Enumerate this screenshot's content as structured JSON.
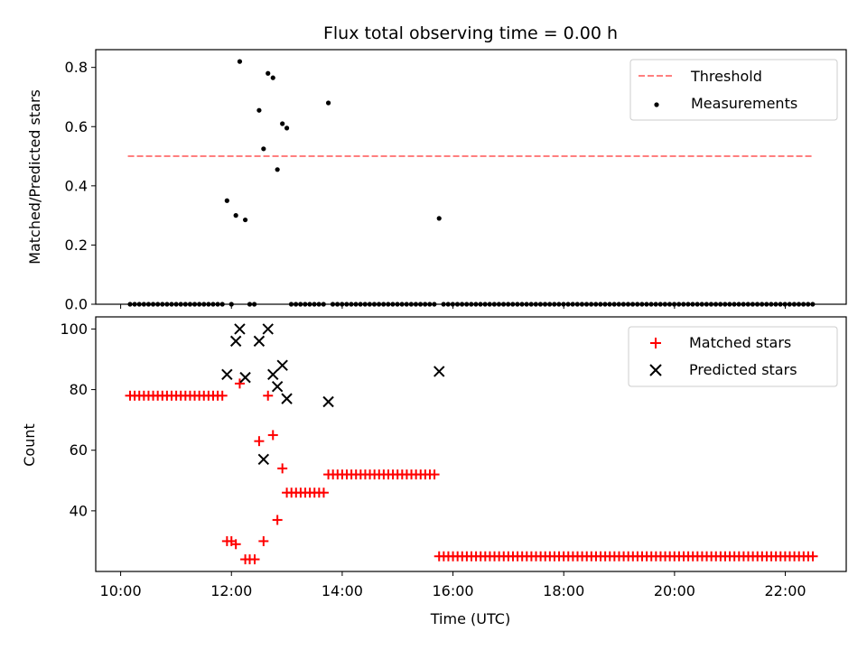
{
  "title": "Flux total observing time = 0.00 h",
  "x_tick_labels": [
    "10:00",
    "12:00",
    "14:00",
    "16:00",
    "18:00",
    "20:00",
    "22:00"
  ],
  "xlabel": "Time (UTC)",
  "colors": {
    "threshold": "#ff7f7f",
    "measurements": "#000000",
    "matched": "#ff0000",
    "predicted": "#000000"
  },
  "chart_data": [
    {
      "type": "scatter",
      "ylabel": "Matched/Predicted stars",
      "xlim_hours": [
        9.55,
        23.1
      ],
      "ylim": [
        0,
        0.86
      ],
      "yticks": [
        0.0,
        0.2,
        0.4,
        0.6,
        0.8
      ],
      "ytick_labels": [
        "0.0",
        "0.2",
        "0.4",
        "0.6",
        "0.8"
      ],
      "legend_position": "top-right",
      "threshold": {
        "name": "Threshold",
        "value": 0.5,
        "x_range_hours": [
          10.13,
          22.52
        ]
      },
      "series": [
        {
          "name": "Measurements",
          "points": [
            [
              11.92,
              0.35
            ],
            [
              12.08,
              0.3
            ],
            [
              12.15,
              0.82
            ],
            [
              12.25,
              0.285
            ],
            [
              12.5,
              0.655
            ],
            [
              12.58,
              0.525
            ],
            [
              12.66,
              0.78
            ],
            [
              12.75,
              0.765
            ],
            [
              12.83,
              0.455
            ],
            [
              12.92,
              0.61
            ],
            [
              13.0,
              0.595
            ],
            [
              13.75,
              0.68
            ],
            [
              15.75,
              0.29
            ]
          ],
          "zero_runs_hours": [
            [
              10.17,
              11.83,
              0.0833
            ],
            [
              12.0,
              12.0,
              0.0833
            ],
            [
              12.33,
              12.42,
              0.0833
            ],
            [
              13.08,
              13.67,
              0.0833
            ],
            [
              13.83,
              15.67,
              0.0833
            ],
            [
              15.83,
              22.5,
              0.0833
            ]
          ]
        }
      ]
    },
    {
      "type": "scatter",
      "ylabel": "Count",
      "xlim_hours": [
        9.55,
        23.1
      ],
      "ylim": [
        20,
        104
      ],
      "yticks": [
        40,
        60,
        80,
        100
      ],
      "ytick_labels": [
        "40",
        "60",
        "80",
        "100"
      ],
      "legend_position": "top-right",
      "series": [
        {
          "name": "Matched stars",
          "marker": "plus",
          "runs_hours": [
            [
              10.17,
              11.83,
              0.0833,
              78
            ],
            [
              13.0,
              13.67,
              0.0833,
              46
            ],
            [
              13.75,
              15.67,
              0.0833,
              52
            ],
            [
              15.75,
              22.5,
              0.0833,
              25
            ]
          ],
          "points": [
            [
              11.92,
              30
            ],
            [
              12.0,
              30
            ],
            [
              12.08,
              29
            ],
            [
              12.15,
              82
            ],
            [
              12.25,
              24
            ],
            [
              12.33,
              24
            ],
            [
              12.42,
              24
            ],
            [
              12.5,
              63
            ],
            [
              12.58,
              30
            ],
            [
              12.66,
              78
            ],
            [
              12.75,
              65
            ],
            [
              12.83,
              37
            ],
            [
              12.92,
              54
            ]
          ]
        },
        {
          "name": "Predicted stars",
          "marker": "x",
          "points": [
            [
              11.92,
              85
            ],
            [
              12.08,
              96
            ],
            [
              12.15,
              100
            ],
            [
              12.25,
              84
            ],
            [
              12.5,
              96
            ],
            [
              12.58,
              57
            ],
            [
              12.66,
              100
            ],
            [
              12.75,
              85
            ],
            [
              12.83,
              81
            ],
            [
              12.92,
              88
            ],
            [
              13.0,
              77
            ],
            [
              13.75,
              76
            ],
            [
              15.75,
              86
            ]
          ]
        }
      ]
    }
  ]
}
